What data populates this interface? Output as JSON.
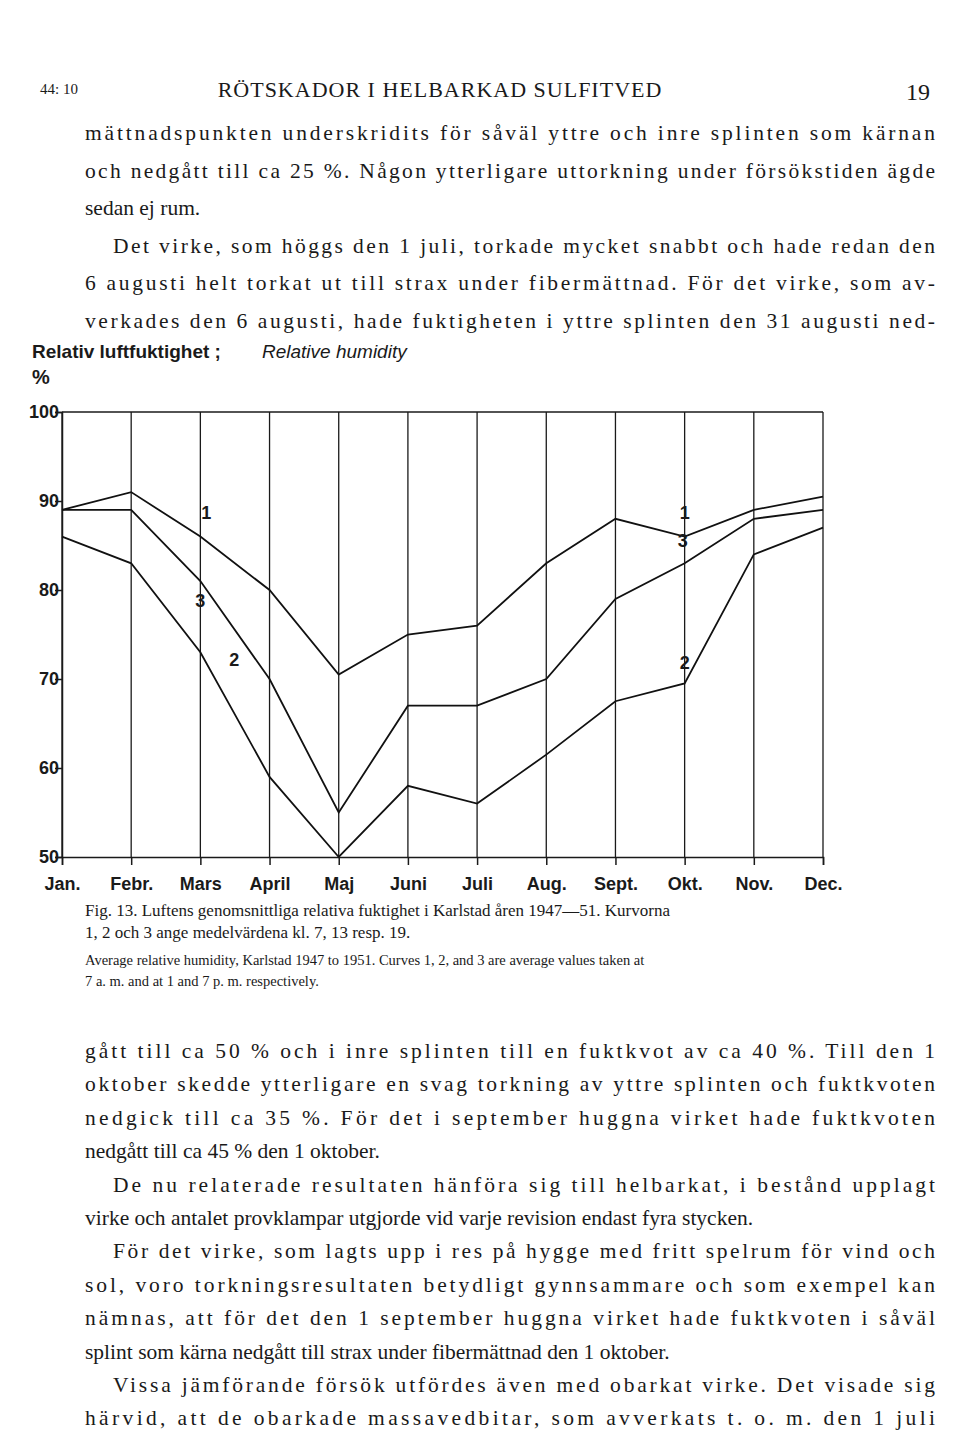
{
  "header": {
    "left": "44: 10",
    "title": "RÖTSKADOR I HELBARKAD SULFITVED",
    "page_number": "19"
  },
  "text_before": [
    [
      "mättnadspunkten underskridits för såväl yttre och inre splinten som kärnan",
      "och nedgått till ca 25 %. Någon ytterligare uttorkning under försökstiden ägde",
      "sedan ej rum."
    ],
    [
      "Det virke, som höggs den 1 juli, torkade mycket snabbt och hade redan den",
      "6 augusti helt torkat ut till strax under fibermättnad. För det virke, som av-",
      "verkades den 6 augusti, hade fuktigheten i yttre splinten den 31 augusti ned-"
    ]
  ],
  "text_after": [
    [
      "gått till ca 50 % och i inre splinten till en fuktkvot av ca 40 %. Till den 1",
      "oktober skedde ytterligare en svag torkning av yttre splinten och fuktkvoten",
      "nedgick till ca 35 %. För det i september huggna virket hade fuktkvoten",
      "nedgått till ca 45 % den 1 oktober."
    ],
    [
      "De nu relaterade resultaten hänföra sig till helbarkat, i bestånd upplagt",
      "virke och antalet provklampar utgjorde vid varje revision endast fyra stycken."
    ],
    [
      "För det virke, som lagts upp i res på hygge med fritt spelrum för vind och",
      "sol, voro torkningsresultaten betydligt gynnsammare och som exempel kan",
      "nämnas, att för det den 1 september huggna virket hade fuktkvoten i såväl",
      "splint som kärna nedgått till strax under fibermättnad den 1 oktober."
    ],
    [
      "Vissa jämförande försök utfördes även med obarkat virke. Det visade sig",
      "härvid, att de obarkade massavedbitar, som avverkats t. o. m. den 1 juli"
    ]
  ],
  "chart_data": {
    "type": "line",
    "ylabel": "Relativ luftfuktighet ;",
    "ylabel_en": "Relative humidity",
    "yunit": "%",
    "caption": [
      "Fig. 13. Luftens genomsnittliga relativa fuktighet i Karlstad åren 1947—51. Kurvorna",
      "1, 2 och 3 ange medelvärdena kl. 7, 13 resp. 19."
    ],
    "caption_en": [
      "Average relative humidity, Karlstad 1947 to 1951. Curves 1, 2, and 3 are average values taken at",
      "7 a. m. and at 1 and 7 p. m. respectively."
    ],
    "categories": [
      "Jan.",
      "Febr.",
      "Mars",
      "April",
      "Maj",
      "Juni",
      "Juli",
      "Aug.",
      "Sept.",
      "Okt.",
      "Nov.",
      "Dec."
    ],
    "series": [
      {
        "name": "1",
        "color": "#111111",
        "values": [
          89,
          91,
          86,
          80,
          70.5,
          75,
          76,
          83,
          88,
          86,
          89,
          90.5
        ]
      },
      {
        "name": "2",
        "color": "#111111",
        "values": [
          86,
          83,
          73,
          59,
          50,
          58,
          56,
          61.5,
          67.5,
          69.5,
          84,
          87
        ]
      },
      {
        "name": "3",
        "color": "#111111",
        "values": [
          89,
          89,
          81,
          70,
          55,
          67,
          67,
          70,
          79,
          83,
          88,
          89
        ]
      }
    ],
    "ylim": [
      50,
      100
    ],
    "yticks": [
      50,
      60,
      70,
      80,
      90,
      100
    ],
    "grid": "x"
  }
}
